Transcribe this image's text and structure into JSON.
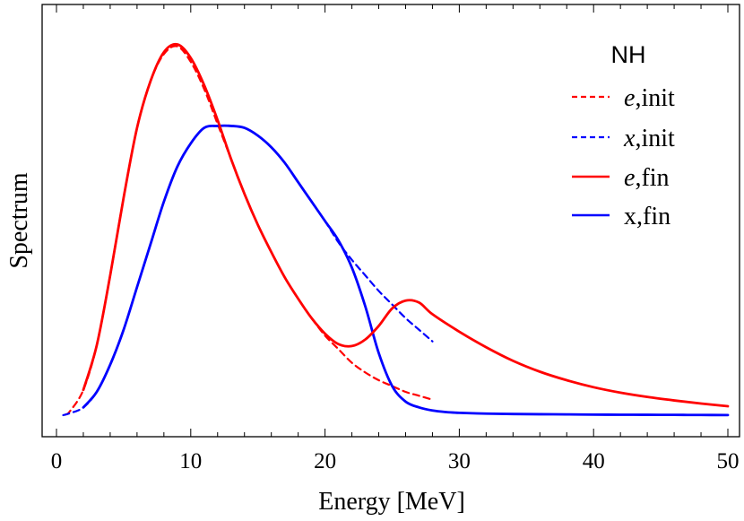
{
  "chart_data": {
    "type": "line",
    "xlabel": "Energy [MeV]",
    "ylabel": "Spectrum",
    "xlim": [
      0,
      50
    ],
    "xticks": [
      "0",
      "10",
      "20",
      "30",
      "40",
      "50"
    ],
    "y_tick_labels": false,
    "grid": false,
    "legend": {
      "title": "NH",
      "position": "top-right",
      "entries": [
        {
          "series": 0,
          "var": "e",
          "text": ",init"
        },
        {
          "series": 1,
          "var": "x",
          "text": ",init"
        },
        {
          "series": 2,
          "var": "",
          "text": "e,fin",
          "italic_prefix": "e"
        },
        {
          "series": 3,
          "var": "",
          "text": "x,fin"
        }
      ]
    },
    "series": [
      {
        "name": "e,init",
        "color": "#ff0000",
        "dash": true,
        "x": [
          0.7,
          1,
          2,
          3,
          4,
          5,
          6,
          7,
          8,
          9,
          10,
          11,
          12,
          13,
          14,
          15,
          16,
          17,
          18,
          19,
          20,
          21,
          22,
          23,
          24,
          25,
          26,
          27,
          28
        ],
        "y": [
          0.2,
          1.0,
          6.5,
          18,
          36,
          56,
          74,
          86,
          93,
          95,
          91,
          84,
          75,
          66,
          57,
          49,
          42,
          35.5,
          30,
          25,
          20.5,
          17,
          13.5,
          11,
          9,
          7.5,
          6,
          5,
          4
        ]
      },
      {
        "name": "x,init",
        "color": "#0000ff",
        "dash": true,
        "x": [
          0.5,
          1,
          2,
          3,
          4,
          5,
          6,
          7,
          8,
          9,
          10,
          11,
          12,
          13,
          14,
          15,
          16,
          17,
          18,
          19,
          20,
          21,
          22,
          23,
          24,
          25,
          26,
          27,
          28
        ],
        "y": [
          0,
          0.5,
          2,
          6,
          13,
          22,
          33,
          44,
          55,
          64,
          70,
          74,
          74.5,
          74.5,
          74,
          72,
          69,
          65,
          60,
          55,
          50,
          44.5,
          40,
          36,
          32,
          28.5,
          25,
          22,
          19
        ]
      },
      {
        "name": "e,fin",
        "color": "#ff0000",
        "dash": false,
        "x": [
          2,
          3,
          4,
          5,
          6,
          7,
          8,
          9,
          10,
          11,
          12,
          13,
          14,
          15,
          16,
          17,
          18,
          19,
          20,
          21,
          22,
          23,
          24,
          25,
          26,
          27,
          28,
          30,
          32,
          34,
          36,
          38,
          40,
          42,
          44,
          46,
          48,
          50
        ],
        "y": [
          6.5,
          18,
          36,
          56,
          74,
          86,
          93.5,
          95.5,
          92,
          85,
          76,
          66,
          57,
          49,
          42,
          35.5,
          30,
          25,
          21,
          18.3,
          17.8,
          19.5,
          23,
          27.5,
          29.5,
          29,
          26,
          21.5,
          17.5,
          14,
          11.2,
          9,
          7.2,
          5.8,
          4.7,
          3.8,
          3,
          2.3
        ]
      },
      {
        "name": "x,fin",
        "color": "#0000ff",
        "dash": false,
        "x": [
          2,
          3,
          4,
          5,
          6,
          7,
          8,
          9,
          10,
          11,
          12,
          13,
          14,
          15,
          16,
          17,
          18,
          19,
          20,
          21,
          22,
          23,
          24,
          25,
          26,
          27,
          28,
          29,
          30,
          32,
          34,
          36,
          38,
          40,
          42,
          44,
          46,
          48,
          50
        ],
        "y": [
          2,
          6,
          13,
          22,
          33,
          44,
          55,
          64,
          70,
          74,
          74.5,
          74.5,
          74,
          72,
          69,
          65,
          60,
          55,
          50,
          45,
          38,
          28,
          16,
          7.5,
          3.5,
          2,
          1.2,
          0.8,
          0.6,
          0.4,
          0.3,
          0.25,
          0.2,
          0.15,
          0.12,
          0.1,
          0.08,
          0.05,
          0.02
        ]
      }
    ]
  }
}
